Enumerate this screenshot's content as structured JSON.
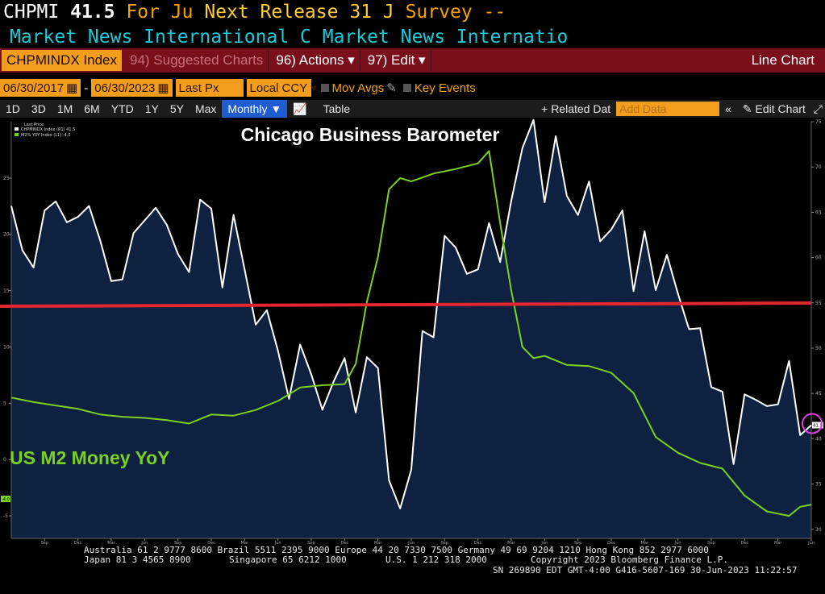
{
  "header": {
    "ticker": "CHPMI",
    "value": "41.5",
    "headline_a": "For Ju",
    "headline_b": "Next Release 31 J",
    "headline_c": "Survey --",
    "source_a": "Market News International C",
    "source_b": "Market News Internatio"
  },
  "toolbar": {
    "ticker_field": "CHPMINDX Index",
    "suggested": "94) Suggested Charts",
    "actions": "96) Actions ▾",
    "edit": "97) Edit ▾",
    "chart_type": "Line Chart"
  },
  "range_bar": {
    "start_date": "06/30/2017",
    "separator": "-",
    "end_date": "06/30/2023",
    "price_field": "Last Px",
    "currency": "Local CCY",
    "mov_avgs": "Mov Avgs",
    "key_events": "Key Events"
  },
  "period_bar": {
    "ranges": [
      "1D",
      "3D",
      "1M",
      "6M",
      "YTD",
      "1Y",
      "5Y",
      "Max"
    ],
    "frequency": "Monthly ▼",
    "table_label": "Table",
    "related": "+ Related Dat",
    "add_data": "Add Data",
    "edit_chart": "✎ Edit Chart"
  },
  "chart_data": {
    "type": "line",
    "title": "Chicago Business Barometer",
    "legend_header": "Last Price",
    "legend_placement": "top-left",
    "annotation": "US M2 Money YoY",
    "grid": false,
    "x_ticks": [
      {
        "date": "2017-09",
        "label": "Sep",
        "year": "2017"
      },
      {
        "date": "2017-12",
        "label": "Dec",
        "year": ""
      },
      {
        "date": "2018-03",
        "label": "Mar",
        "year": ""
      },
      {
        "date": "2018-06",
        "label": "Jun",
        "year": ""
      },
      {
        "date": "2018-09",
        "label": "Sep",
        "year": ""
      },
      {
        "date": "2018-12",
        "label": "Dec",
        "year": ""
      },
      {
        "date": "2019-03",
        "label": "Mar",
        "year": ""
      },
      {
        "date": "2019-06",
        "label": "Jun",
        "year": ""
      },
      {
        "date": "2019-09",
        "label": "Sep",
        "year": ""
      },
      {
        "date": "2019-12",
        "label": "Dec",
        "year": ""
      },
      {
        "date": "2020-03",
        "label": "Mar",
        "year": ""
      },
      {
        "date": "2020-06",
        "label": "Jun",
        "year": ""
      },
      {
        "date": "2020-09",
        "label": "Sep",
        "year": ""
      },
      {
        "date": "2020-12",
        "label": "Dec",
        "year": ""
      },
      {
        "date": "2021-03",
        "label": "Mar",
        "year": ""
      },
      {
        "date": "2021-06",
        "label": "Jun",
        "year": ""
      },
      {
        "date": "2021-09",
        "label": "Sep",
        "year": ""
      },
      {
        "date": "2021-12",
        "label": "Dec",
        "year": ""
      },
      {
        "date": "2022-03",
        "label": "Mar",
        "year": ""
      },
      {
        "date": "2022-06",
        "label": "Jun",
        "year": ""
      },
      {
        "date": "2022-09",
        "label": "Sep",
        "year": ""
      },
      {
        "date": "2022-12",
        "label": "Dec",
        "year": ""
      },
      {
        "date": "2023-03",
        "label": "Mar",
        "year": "2023"
      },
      {
        "date": "2023-06",
        "label": "Jun",
        "year": ""
      }
    ],
    "x_range": [
      "2017-06",
      "2023-06"
    ],
    "y_left": {
      "ylim": [
        -7,
        30
      ],
      "ticks": [
        "25",
        "20",
        "15",
        "10",
        "5",
        "0",
        "-5"
      ]
    },
    "y_right": {
      "ylim": [
        29,
        75
      ],
      "ticks": [
        "75",
        "70",
        "65",
        "60",
        "55",
        "50",
        "45",
        "40",
        "35",
        "30"
      ]
    },
    "reference_line": {
      "axis": "right",
      "value": 54.8,
      "color": "#e3262f"
    },
    "series": [
      {
        "name": "CHPMINDX Index (R1) 41.5",
        "axis": "right",
        "color": "#ffffff",
        "fill": "#0f2140",
        "last_label": "41.5",
        "x": [
          "2017-06",
          "2017-07",
          "2017-08",
          "2017-09",
          "2017-10",
          "2017-11",
          "2017-12",
          "2018-01",
          "2018-02",
          "2018-03",
          "2018-04",
          "2018-05",
          "2018-06",
          "2018-07",
          "2018-08",
          "2018-09",
          "2018-10",
          "2018-11",
          "2018-12",
          "2019-01",
          "2019-02",
          "2019-03",
          "2019-04",
          "2019-05",
          "2019-06",
          "2019-07",
          "2019-08",
          "2019-09",
          "2019-10",
          "2019-11",
          "2019-12",
          "2020-01",
          "2020-02",
          "2020-03",
          "2020-04",
          "2020-05",
          "2020-06",
          "2020-07",
          "2020-08",
          "2020-09",
          "2020-10",
          "2020-11",
          "2020-12",
          "2021-01",
          "2021-02",
          "2021-03",
          "2021-04",
          "2021-05",
          "2021-06",
          "2021-07",
          "2021-08",
          "2021-09",
          "2021-10",
          "2021-11",
          "2021-12",
          "2022-01",
          "2022-02",
          "2022-03",
          "2022-04",
          "2022-05",
          "2022-06",
          "2022-07",
          "2022-08",
          "2022-09",
          "2022-10",
          "2022-11",
          "2022-12",
          "2023-01",
          "2023-02",
          "2023-03",
          "2023-04",
          "2023-05",
          "2023-06"
        ],
        "values": [
          65.7,
          60.8,
          58.9,
          65.2,
          66.2,
          63.9,
          64.5,
          65.7,
          61.9,
          57.4,
          57.6,
          62.7,
          64.1,
          65.5,
          63.6,
          60.4,
          58.4,
          66.4,
          65.4,
          56.7,
          64.7,
          58.7,
          52.6,
          54.2,
          49.7,
          44.4,
          50.4,
          47.1,
          43.2,
          46.3,
          48.9,
          42.9,
          49.0,
          47.8,
          35.4,
          32.3,
          36.6,
          51.9,
          51.2,
          62.4,
          61.1,
          58.2,
          58.7,
          63.8,
          59.5,
          66.3,
          72.1,
          75.2,
          66.1,
          73.4,
          66.8,
          64.7,
          68.4,
          61.8,
          63.1,
          65.2,
          56.3,
          62.9,
          56.4,
          60.3,
          56.0,
          52.1,
          52.2,
          45.7,
          45.2,
          37.2,
          44.9,
          44.3,
          43.6,
          43.8,
          48.6,
          40.4,
          41.5
        ]
      },
      {
        "name": "M2% YOY Index (L1) -4.0",
        "axis": "left",
        "color": "#7cd11f",
        "last_label": "-4.0",
        "x": [
          "2017-06",
          "2017-08",
          "2017-10",
          "2017-12",
          "2018-02",
          "2018-04",
          "2018-06",
          "2018-08",
          "2018-10",
          "2018-12",
          "2019-02",
          "2019-04",
          "2019-06",
          "2019-08",
          "2019-10",
          "2019-12",
          "2020-01",
          "2020-02",
          "2020-03",
          "2020-04",
          "2020-05",
          "2020-06",
          "2020-08",
          "2020-10",
          "2020-12",
          "2021-01",
          "2021-02",
          "2021-03",
          "2021-04",
          "2021-05",
          "2021-06",
          "2021-08",
          "2021-10",
          "2021-12",
          "2022-02",
          "2022-04",
          "2022-06",
          "2022-08",
          "2022-10",
          "2022-12",
          "2023-02",
          "2023-04",
          "2023-05",
          "2023-06"
        ],
        "values": [
          5.5,
          5.1,
          4.8,
          4.5,
          4.0,
          3.8,
          3.7,
          3.5,
          3.2,
          4.0,
          3.9,
          4.4,
          5.2,
          6.4,
          6.6,
          6.7,
          8.5,
          14.0,
          18.0,
          24.0,
          25.0,
          24.7,
          25.4,
          25.8,
          26.3,
          27.4,
          21.0,
          15.0,
          10.0,
          9.0,
          9.2,
          8.4,
          8.3,
          7.7,
          5.9,
          2.0,
          0.6,
          -0.3,
          -0.8,
          -3.2,
          -4.6,
          -5.0,
          -4.2,
          -4.0
        ]
      }
    ]
  },
  "footer": {
    "line1": "Australia 61 2 9777 8600 Brazil 5511 2395 9000 Europe 44 20 7330 7500 Germany 49 69 9204 1210 Hong Kong 852 2977 6000",
    "line2a": "Japan 81 3 4565 8900",
    "line2b": "Singapore 65 6212 1000",
    "line2c": "U.S. 1 212 318 2000",
    "line2d": "Copyright 2023 Bloomberg Finance L.P.",
    "line3": "SN 269890 EDT  GMT-4:00 G416-5607-169 30-Jun-2023 11:22:57"
  }
}
